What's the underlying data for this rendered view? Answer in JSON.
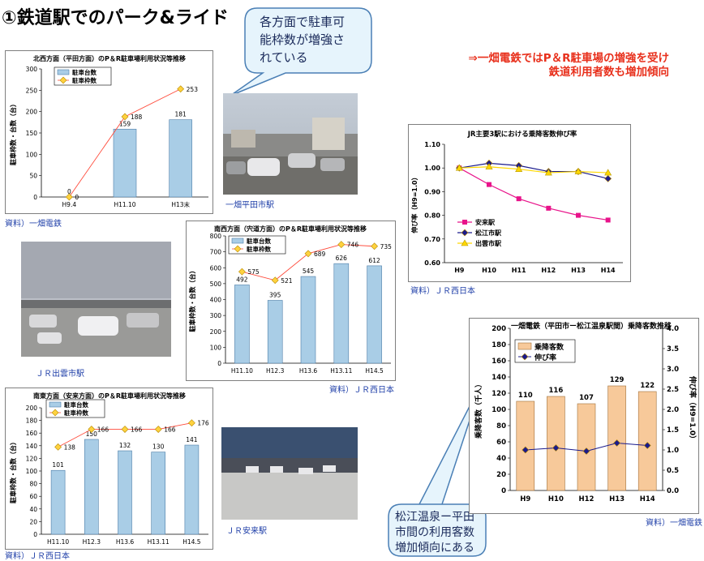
{
  "page": {
    "title": "①鉄道駅でのパーク&ライド",
    "bubble_top": [
      "各方面で駐車可",
      "能枠数が増強さ",
      "れている"
    ],
    "headline": [
      "⇒一畑電鉄ではP＆R駐車場の増強を受け",
      "鉄道利用者数も増加傾向"
    ],
    "bubble_bottom": [
      "松江温泉ー平田",
      "市間の利用客数",
      "増加傾向にある"
    ],
    "photo_captions": {
      "hirata": "一畑平田市駅",
      "izumo": "ＪＲ出雲市駅",
      "yasugi": "ＪＲ安来駅"
    },
    "sources": {
      "north": "資料）一畑電鉄",
      "southwest": "資料）ＪＲ西日本",
      "southeast": "資料）ＪＲ西日本",
      "jr": "資料）ＪＲ西日本",
      "ichibata": "資料）一畑電鉄"
    }
  },
  "chart_data": [
    {
      "id": "north",
      "type": "bar",
      "title": "北西方面（平田方面）のP＆R駐車場利用状況等推移",
      "ylabel": "駐車枠数・台数（台）",
      "categories": [
        "H9.4",
        "H11.10",
        "H13末"
      ],
      "ylim": [
        0,
        300
      ],
      "yticks": [
        0,
        50,
        100,
        150,
        200,
        250,
        300
      ],
      "series": [
        {
          "name": "駐車台数",
          "kind": "bar",
          "values": [
            0,
            159,
            181
          ],
          "color": "#a9cde6"
        },
        {
          "name": "駐車枠数",
          "kind": "line",
          "values": [
            0,
            188,
            253
          ],
          "color": "#ffd23f",
          "line_color": "#ff4a3a"
        }
      ],
      "legend": "top-left"
    },
    {
      "id": "southwest",
      "type": "bar",
      "title": "南西方面（宍道方面）のP＆R駐車場利用状況等推移",
      "ylabel": "駐車枠数・台数（台）",
      "categories": [
        "H11.10",
        "H12.3",
        "H13.6",
        "H13.11",
        "H14.5"
      ],
      "ylim": [
        0,
        800
      ],
      "yticks": [
        0,
        100,
        200,
        300,
        400,
        500,
        600,
        700,
        800
      ],
      "series": [
        {
          "name": "駐車台数",
          "kind": "bar",
          "values": [
            492,
            395,
            545,
            626,
            612
          ],
          "color": "#a9cde6"
        },
        {
          "name": "駐車枠数",
          "kind": "line",
          "values": [
            575,
            521,
            689,
            746,
            735
          ],
          "color": "#ffd23f",
          "line_color": "#ff4a3a"
        }
      ],
      "legend": "top-left"
    },
    {
      "id": "southeast",
      "type": "bar",
      "title": "南東方面（安来方面）のP＆R駐車場利用状況等推移",
      "ylabel": "駐車枠数・台数（台）",
      "categories": [
        "H11.10",
        "H12.3",
        "H13.6",
        "H13.11",
        "H14.5"
      ],
      "ylim": [
        0,
        200
      ],
      "yticks": [
        0,
        20,
        40,
        60,
        80,
        100,
        120,
        140,
        160,
        180,
        200
      ],
      "series": [
        {
          "name": "駐車台数",
          "kind": "bar",
          "values": [
            101,
            150,
            132,
            130,
            141
          ],
          "color": "#a9cde6"
        },
        {
          "name": "駐車枠数",
          "kind": "line",
          "values": [
            138,
            166,
            166,
            166,
            176
          ],
          "color": "#ffd23f",
          "line_color": "#ff4a3a"
        }
      ],
      "legend": "top-left"
    },
    {
      "id": "jr",
      "type": "line",
      "title": "JR主要3駅における乗降客数伸び率",
      "ylabel": "伸び率（H9=1.0）",
      "categories": [
        "H9",
        "H10",
        "H11",
        "H12",
        "H13",
        "H14"
      ],
      "ylim": [
        0.6,
        1.1
      ],
      "yticks": [
        0.6,
        0.7,
        0.8,
        0.9,
        1.0,
        1.1
      ],
      "series": [
        {
          "name": "安来駅",
          "marker": "square",
          "color": "#e8138a",
          "values": [
            1.0,
            0.93,
            0.87,
            0.83,
            0.8,
            0.78
          ]
        },
        {
          "name": "松江市駅",
          "marker": "diamond",
          "color": "#1a1a8c",
          "values": [
            1.0,
            1.02,
            1.01,
            0.985,
            0.985,
            0.955
          ]
        },
        {
          "name": "出雲市駅",
          "marker": "triangle",
          "color": "#ffd700",
          "values": [
            1.0,
            1.005,
            0.995,
            0.98,
            0.985,
            0.98
          ]
        }
      ],
      "legend": "bottom-left"
    },
    {
      "id": "ichibata",
      "type": "bar",
      "title": "一畑電鉄（平田市ー松江温泉駅間）乗降客数推移",
      "ylabel": "乗降客数（千人）",
      "y2label": "伸び率（H9=1.0）",
      "categories": [
        "H9",
        "H10",
        "H12",
        "H13",
        "H14"
      ],
      "ylim": [
        0,
        200
      ],
      "yticks": [
        0,
        20,
        40,
        60,
        80,
        100,
        120,
        140,
        160,
        180,
        200
      ],
      "y2lim": [
        0,
        4
      ],
      "y2ticks": [
        "0.0",
        "0.5",
        "1.0",
        "1.5",
        "2.0",
        "2.5",
        "3.0",
        "3.5",
        "4.0"
      ],
      "series": [
        {
          "name": "乗降客数",
          "kind": "bar",
          "values": [
            110,
            116,
            107,
            129,
            122
          ],
          "color": "#f7c99a"
        },
        {
          "name": "伸び率",
          "kind": "line",
          "axis": "y2",
          "values": [
            1.0,
            1.05,
            0.97,
            1.17,
            1.11
          ],
          "color": "#1a1a8c"
        }
      ],
      "legend": "top-left"
    }
  ]
}
